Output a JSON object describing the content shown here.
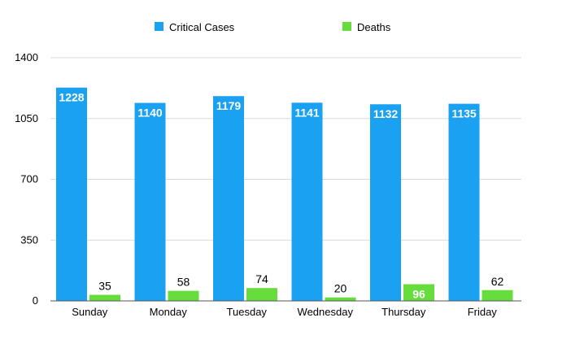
{
  "chart_data": {
    "type": "bar",
    "categories": [
      "Sunday",
      "Monday",
      "Tuesday",
      "Wednesday",
      "Thursday",
      "Friday"
    ],
    "series": [
      {
        "name": "Critical Cases",
        "values": [
          1228,
          1140,
          1179,
          1141,
          1132,
          1135
        ],
        "color": "#1ba1f2"
      },
      {
        "name": "Deaths",
        "values": [
          35,
          58,
          74,
          20,
          96,
          62
        ],
        "color": "#66dd3c"
      }
    ],
    "y_ticks": [
      "0",
      "350",
      "700",
      "1050",
      "1400"
    ],
    "ylim": [
      0,
      1400
    ],
    "grid": true,
    "legend_position": "top",
    "title": "",
    "xlabel": "",
    "ylabel": ""
  }
}
